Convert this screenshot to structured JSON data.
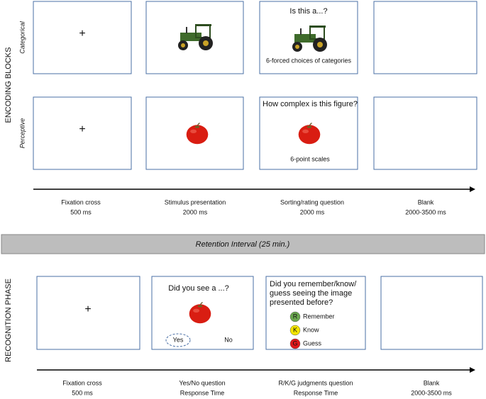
{
  "encoding": {
    "title": "ENCODING BLOCKS",
    "fixation": "+",
    "rows": [
      {
        "label": "Categorical",
        "question": "Is this a...?",
        "note": "6-forced choices of categories"
      },
      {
        "label": "Perceptive",
        "question": "How complex is this figure?",
        "note": "6-point scales"
      }
    ],
    "timeline": [
      {
        "name": "Fixation cross",
        "duration": "500 ms"
      },
      {
        "name": "Stimulus presentation",
        "duration": "2000 ms"
      },
      {
        "name": "Sorting/rating question",
        "duration": "2000 ms"
      },
      {
        "name": "Blank",
        "duration": "2000-3500 ms"
      }
    ]
  },
  "retention": {
    "label": "Retention Interval (25 min.)"
  },
  "recognition": {
    "title": "RECOGNITION PHASE",
    "fixation": "+",
    "question1": "Did you see a ...?",
    "yes": "Yes",
    "no": "No",
    "question2": [
      "Did you remember/know/",
      "guess seeing the image",
      "presented before?"
    ],
    "options": [
      {
        "key": "R",
        "label": "Remember",
        "color": "#6aa84f"
      },
      {
        "key": "K",
        "label": "Know",
        "color": "#f4e500"
      },
      {
        "key": "G",
        "label": "Guess",
        "color": "#e0191b"
      }
    ],
    "timeline": [
      {
        "name": "Fixation cross",
        "duration": "500 ms"
      },
      {
        "name": "Yes/No question",
        "duration": "Response Time"
      },
      {
        "name": "R/K/G judgments question",
        "duration": "Response Time"
      },
      {
        "name": "Blank",
        "duration": "2000-3500 ms"
      }
    ]
  }
}
